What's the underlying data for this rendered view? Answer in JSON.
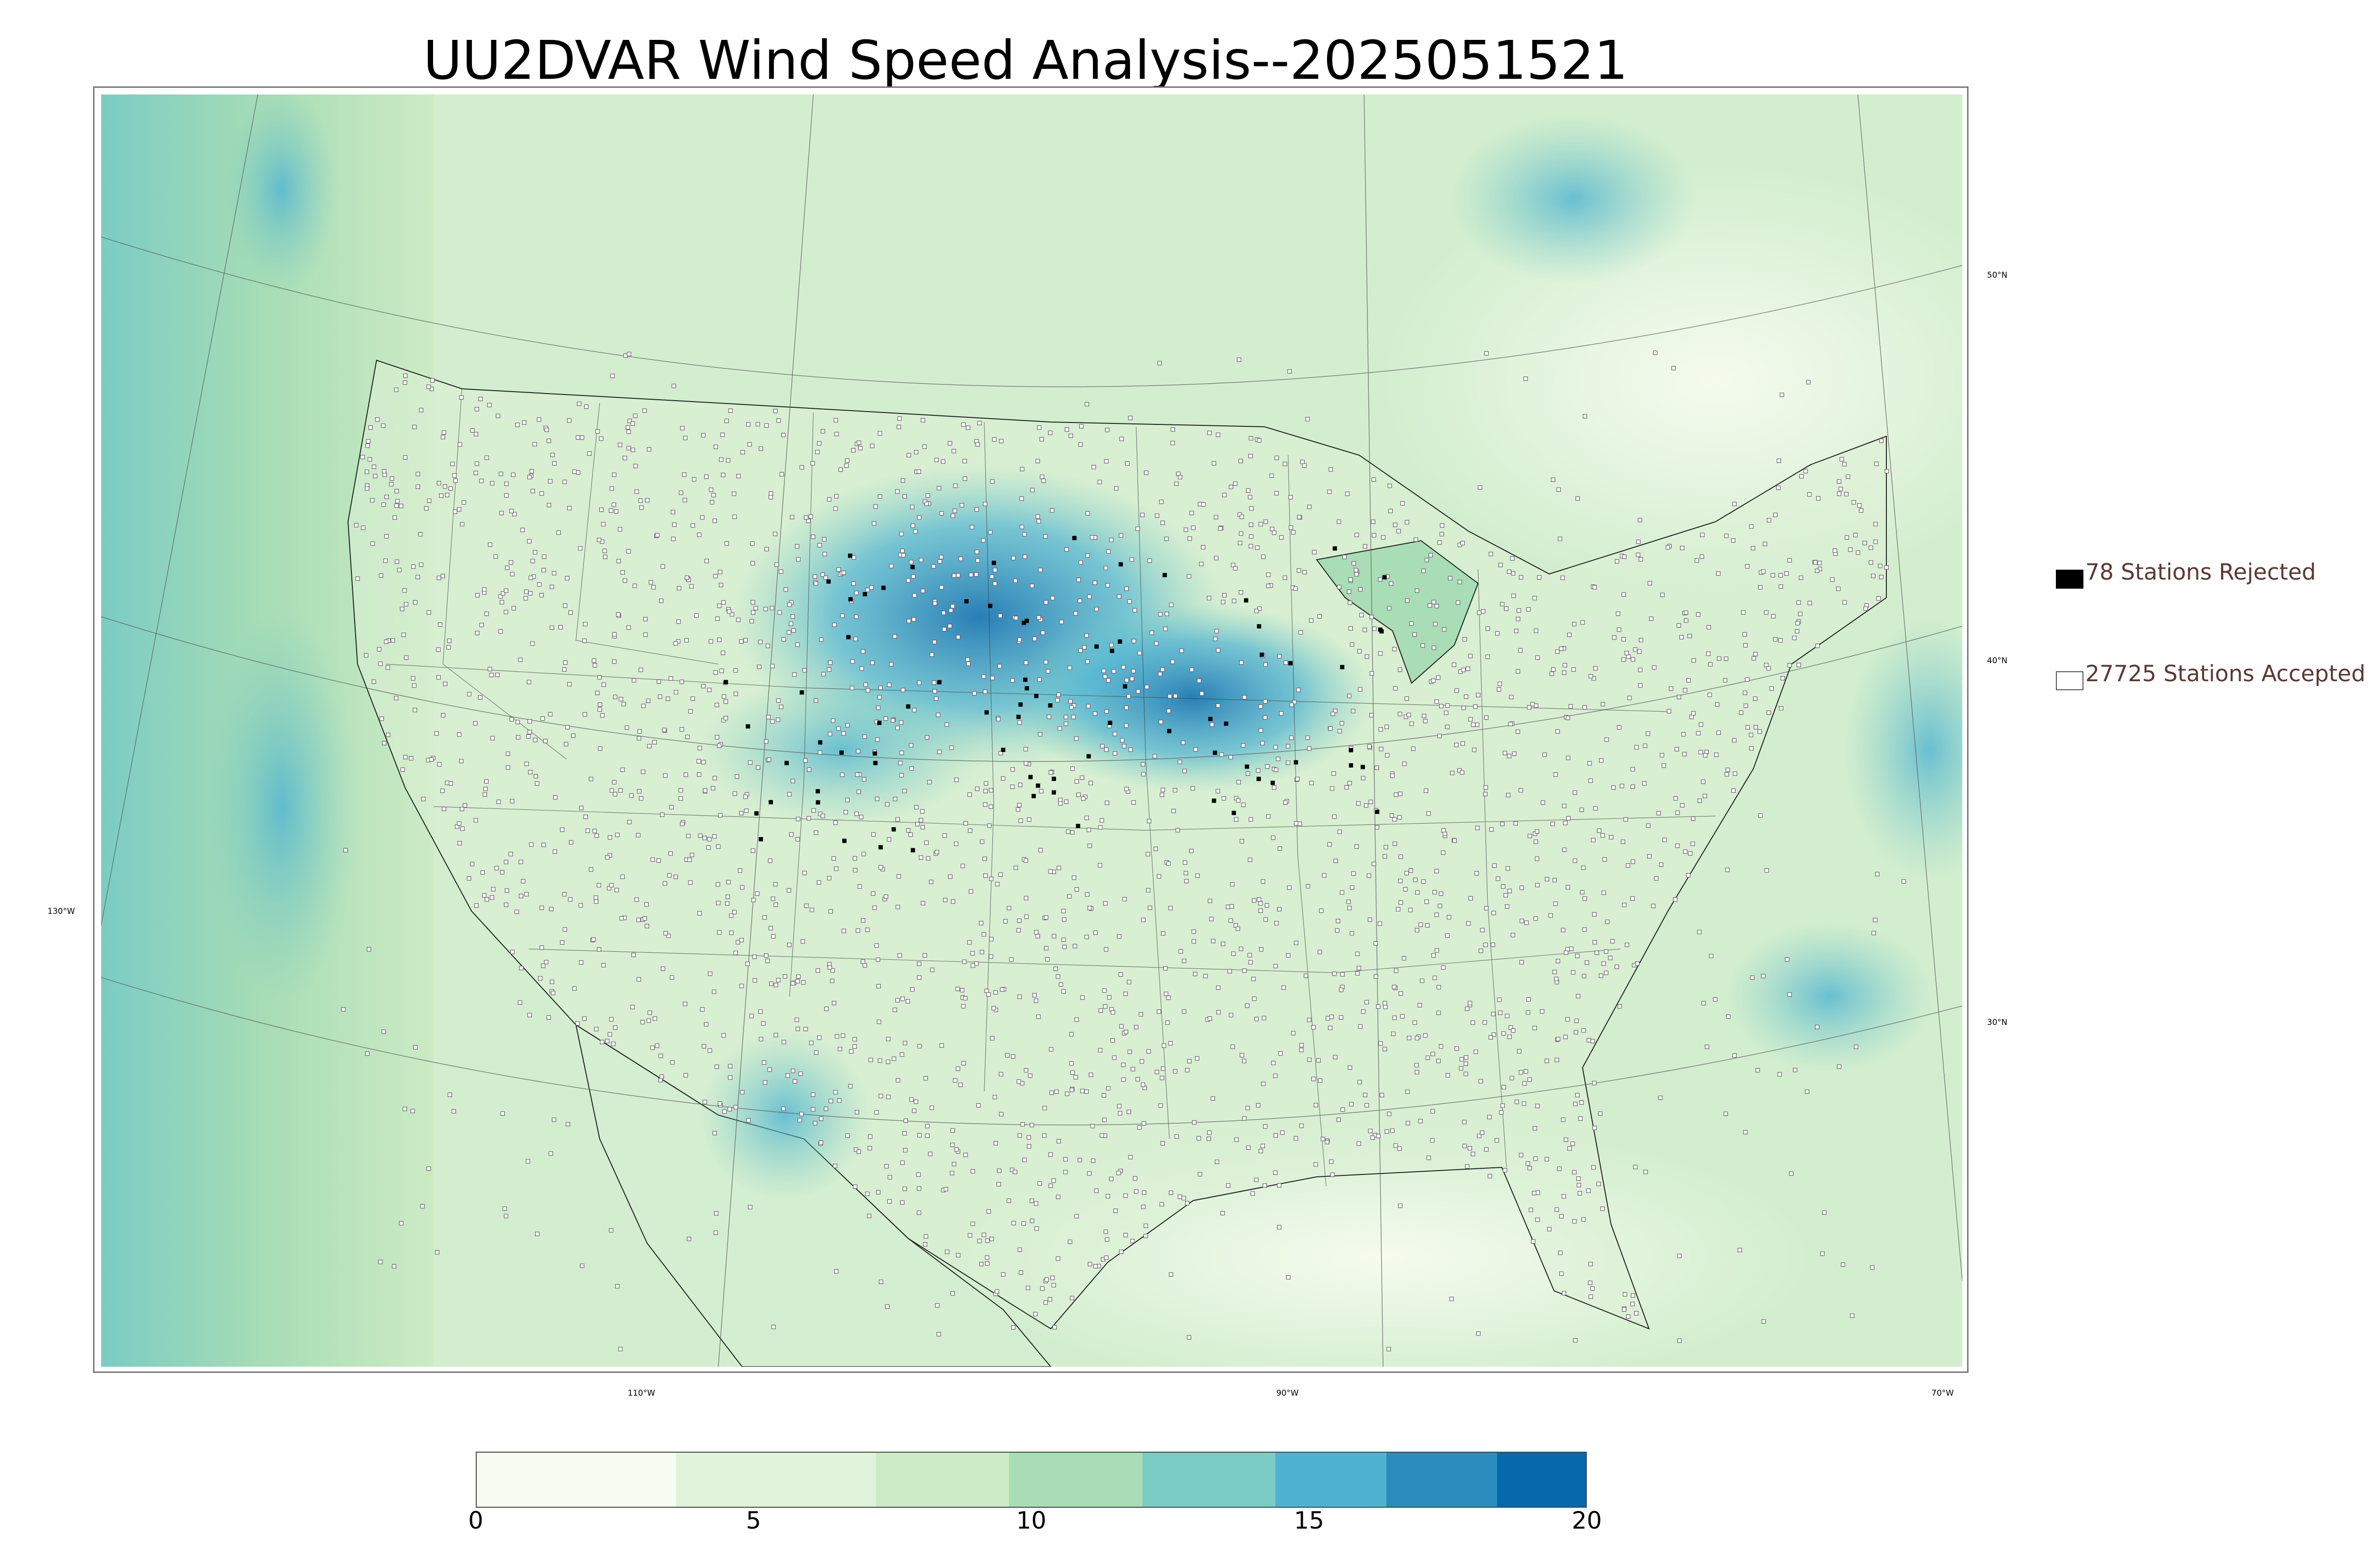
{
  "title": "UU2DVAR Wind Speed Analysis--2025051521",
  "legend": {
    "rejected": {
      "label": "78 Stations Rejected",
      "color": "#000000"
    },
    "accepted": {
      "label": "27725 Stations Accepted",
      "color": "#ffffff"
    }
  },
  "graticule": {
    "longitude_labels": [
      "130°W",
      "110°W",
      "90°W",
      "70°W"
    ],
    "latitude_labels": [
      "50°N",
      "40°N",
      "30°N"
    ]
  },
  "colorbar": {
    "ticks": [
      "0",
      "5",
      "10",
      "15",
      "20"
    ],
    "range": [
      0,
      20
    ],
    "colors": [
      "#f7fcf0",
      "#e0f3db",
      "#ccebc5",
      "#a8ddb5",
      "#7bccc4",
      "#4eb3d3",
      "#2b8cbe",
      "#0868ac"
    ]
  },
  "colors": {
    "land_low": "#dff1d8",
    "land_mid": "#b3e0c0",
    "wind_high": "#2b8cbe",
    "station_outline": "#6b5b6e"
  }
}
